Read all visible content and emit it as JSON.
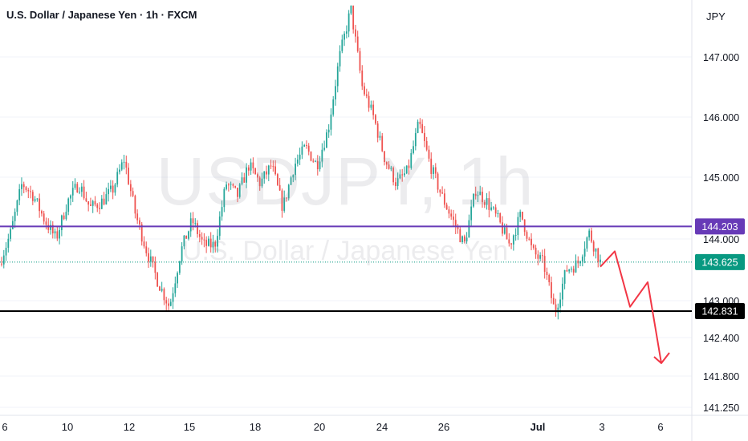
{
  "header": {
    "title": "U.S. Dollar / Japanese Yen · 1h · FXCM",
    "currency": "JPY"
  },
  "watermark": {
    "symbol": "USDJPY, 1h",
    "name": "U.S. Dollar / Japanese Yen"
  },
  "colors": {
    "up": "#26a69a",
    "down": "#ef5350",
    "resistance": "#673ab7",
    "support": "#000000",
    "current": "#089981",
    "projection": "#f23645"
  },
  "chart_data": {
    "type": "candlestick",
    "title": "U.S. Dollar / Japanese Yen · 1h · FXCM",
    "y_axis": {
      "side": "right",
      "ticks": [
        141.25,
        141.8,
        142.4,
        143.0,
        144.0,
        145.0,
        146.0,
        147.0
      ],
      "tick_labels": [
        "141.250",
        "141.800",
        "142.400",
        "143.000",
        "144.000",
        "145.000",
        "146.000",
        "147.000"
      ]
    },
    "x_axis": {
      "tick_labels": [
        "6",
        "10",
        "12",
        "15",
        "18",
        "20",
        "24",
        "26",
        "Jul",
        "3",
        "6"
      ]
    },
    "lines": [
      {
        "name": "resistance",
        "value": 144.203,
        "label": "144.203"
      },
      {
        "name": "support",
        "value": 142.831,
        "label": "142.831"
      },
      {
        "name": "current-price",
        "value": 143.625,
        "label": "143.625"
      }
    ],
    "path_points": [
      [
        0,
        143.6
      ],
      [
        2,
        144.1
      ],
      [
        3,
        144.9
      ],
      [
        4,
        144.7
      ],
      [
        5,
        144.3
      ],
      [
        6,
        144.0
      ],
      [
        7,
        144.6
      ],
      [
        8,
        144.9
      ],
      [
        9,
        144.5
      ],
      [
        10,
        144.6
      ],
      [
        11,
        144.8
      ],
      [
        12,
        145.3
      ],
      [
        13,
        144.4
      ],
      [
        14,
        143.8
      ],
      [
        15,
        143.3
      ],
      [
        16,
        142.9
      ],
      [
        17,
        143.8
      ],
      [
        18,
        144.3
      ],
      [
        19,
        143.9
      ],
      [
        20,
        143.9
      ],
      [
        21,
        144.9
      ],
      [
        22,
        144.7
      ],
      [
        23,
        145.2
      ],
      [
        24,
        144.9
      ],
      [
        25,
        145.2
      ],
      [
        26,
        144.5
      ],
      [
        27,
        145.2
      ],
      [
        28,
        145.5
      ],
      [
        29,
        145.2
      ],
      [
        30,
        145.8
      ],
      [
        31,
        147.0
      ],
      [
        32,
        147.8
      ],
      [
        33,
        146.5
      ],
      [
        34,
        146.0
      ],
      [
        35,
        145.3
      ],
      [
        36,
        144.9
      ],
      [
        37,
        145.1
      ],
      [
        38,
        145.9
      ],
      [
        39,
        145.2
      ],
      [
        40,
        144.7
      ],
      [
        41,
        144.3
      ],
      [
        42,
        143.9
      ],
      [
        43,
        144.8
      ],
      [
        44,
        144.6
      ],
      [
        45,
        144.3
      ],
      [
        46,
        143.9
      ],
      [
        47,
        144.4
      ],
      [
        48,
        143.8
      ],
      [
        49,
        143.6
      ],
      [
        50,
        142.8
      ],
      [
        51,
        143.5
      ],
      [
        52,
        143.6
      ],
      [
        53,
        144.1
      ],
      [
        54,
        143.625
      ]
    ],
    "candle_count": 54,
    "projection": [
      [
        143.55,
        0
      ],
      [
        143.8,
        1
      ],
      [
        142.9,
        2
      ],
      [
        143.3,
        3
      ],
      [
        142.0,
        4
      ]
    ]
  }
}
